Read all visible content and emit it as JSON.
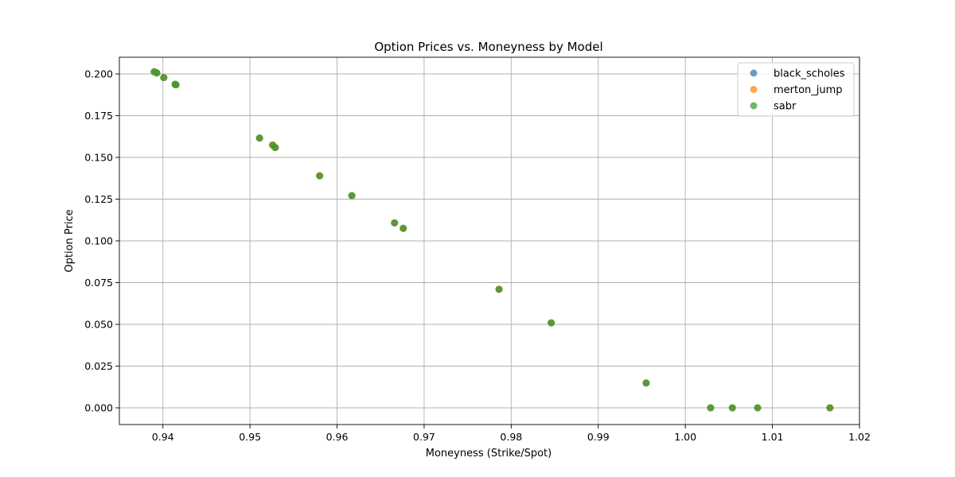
{
  "chart_data": {
    "type": "scatter",
    "title": "Option Prices vs. Moneyness by Model",
    "xlabel": "Moneyness (Strike/Spot)",
    "ylabel": "Option Price",
    "xlim": [
      0.935,
      1.02
    ],
    "ylim": [
      -0.01,
      0.21
    ],
    "xticks": [
      0.94,
      0.95,
      0.96,
      0.97,
      0.98,
      0.99,
      1.0,
      1.01,
      1.02
    ],
    "xtick_labels": [
      "0.94",
      "0.95",
      "0.96",
      "0.97",
      "0.98",
      "0.99",
      "1.00",
      "1.01",
      "1.02"
    ],
    "yticks": [
      0.0,
      0.025,
      0.05,
      0.075,
      0.1,
      0.125,
      0.15,
      0.175,
      0.2
    ],
    "ytick_labels": [
      "0.000",
      "0.025",
      "0.050",
      "0.075",
      "0.100",
      "0.125",
      "0.150",
      "0.175",
      "0.200"
    ],
    "grid": true,
    "legend_position": "top-right",
    "x": [
      0.939,
      0.9393,
      0.9401,
      0.9414,
      0.9415,
      0.9511,
      0.9526,
      0.9529,
      0.958,
      0.9617,
      0.9666,
      0.9676,
      0.9786,
      0.9846,
      0.9955,
      1.0029,
      1.0054,
      1.0083,
      1.0166
    ],
    "series": [
      {
        "name": "black_scholes",
        "color": "#1f77b4",
        "values": [
          0.2013,
          0.2006,
          0.1978,
          0.1938,
          0.1935,
          0.1616,
          0.1574,
          0.1559,
          0.139,
          0.1271,
          0.1108,
          0.1075,
          0.071,
          0.0509,
          0.0149,
          0.0,
          0.0,
          0.0,
          0.0
        ]
      },
      {
        "name": "merton_jump",
        "color": "#ff7f0e",
        "values": [
          0.2013,
          0.2006,
          0.1978,
          0.1938,
          0.1935,
          0.1616,
          0.1574,
          0.1559,
          0.139,
          0.1271,
          0.1108,
          0.1075,
          0.071,
          0.0509,
          0.0149,
          0.0,
          0.0,
          0.0,
          0.0
        ]
      },
      {
        "name": "sabr",
        "color": "#2ca02c",
        "values": [
          0.2013,
          0.2006,
          0.1978,
          0.1938,
          0.1935,
          0.1616,
          0.1574,
          0.1559,
          0.139,
          0.1271,
          0.1108,
          0.1075,
          0.071,
          0.0509,
          0.0149,
          0.0,
          0.0,
          0.0,
          0.0
        ]
      }
    ]
  }
}
